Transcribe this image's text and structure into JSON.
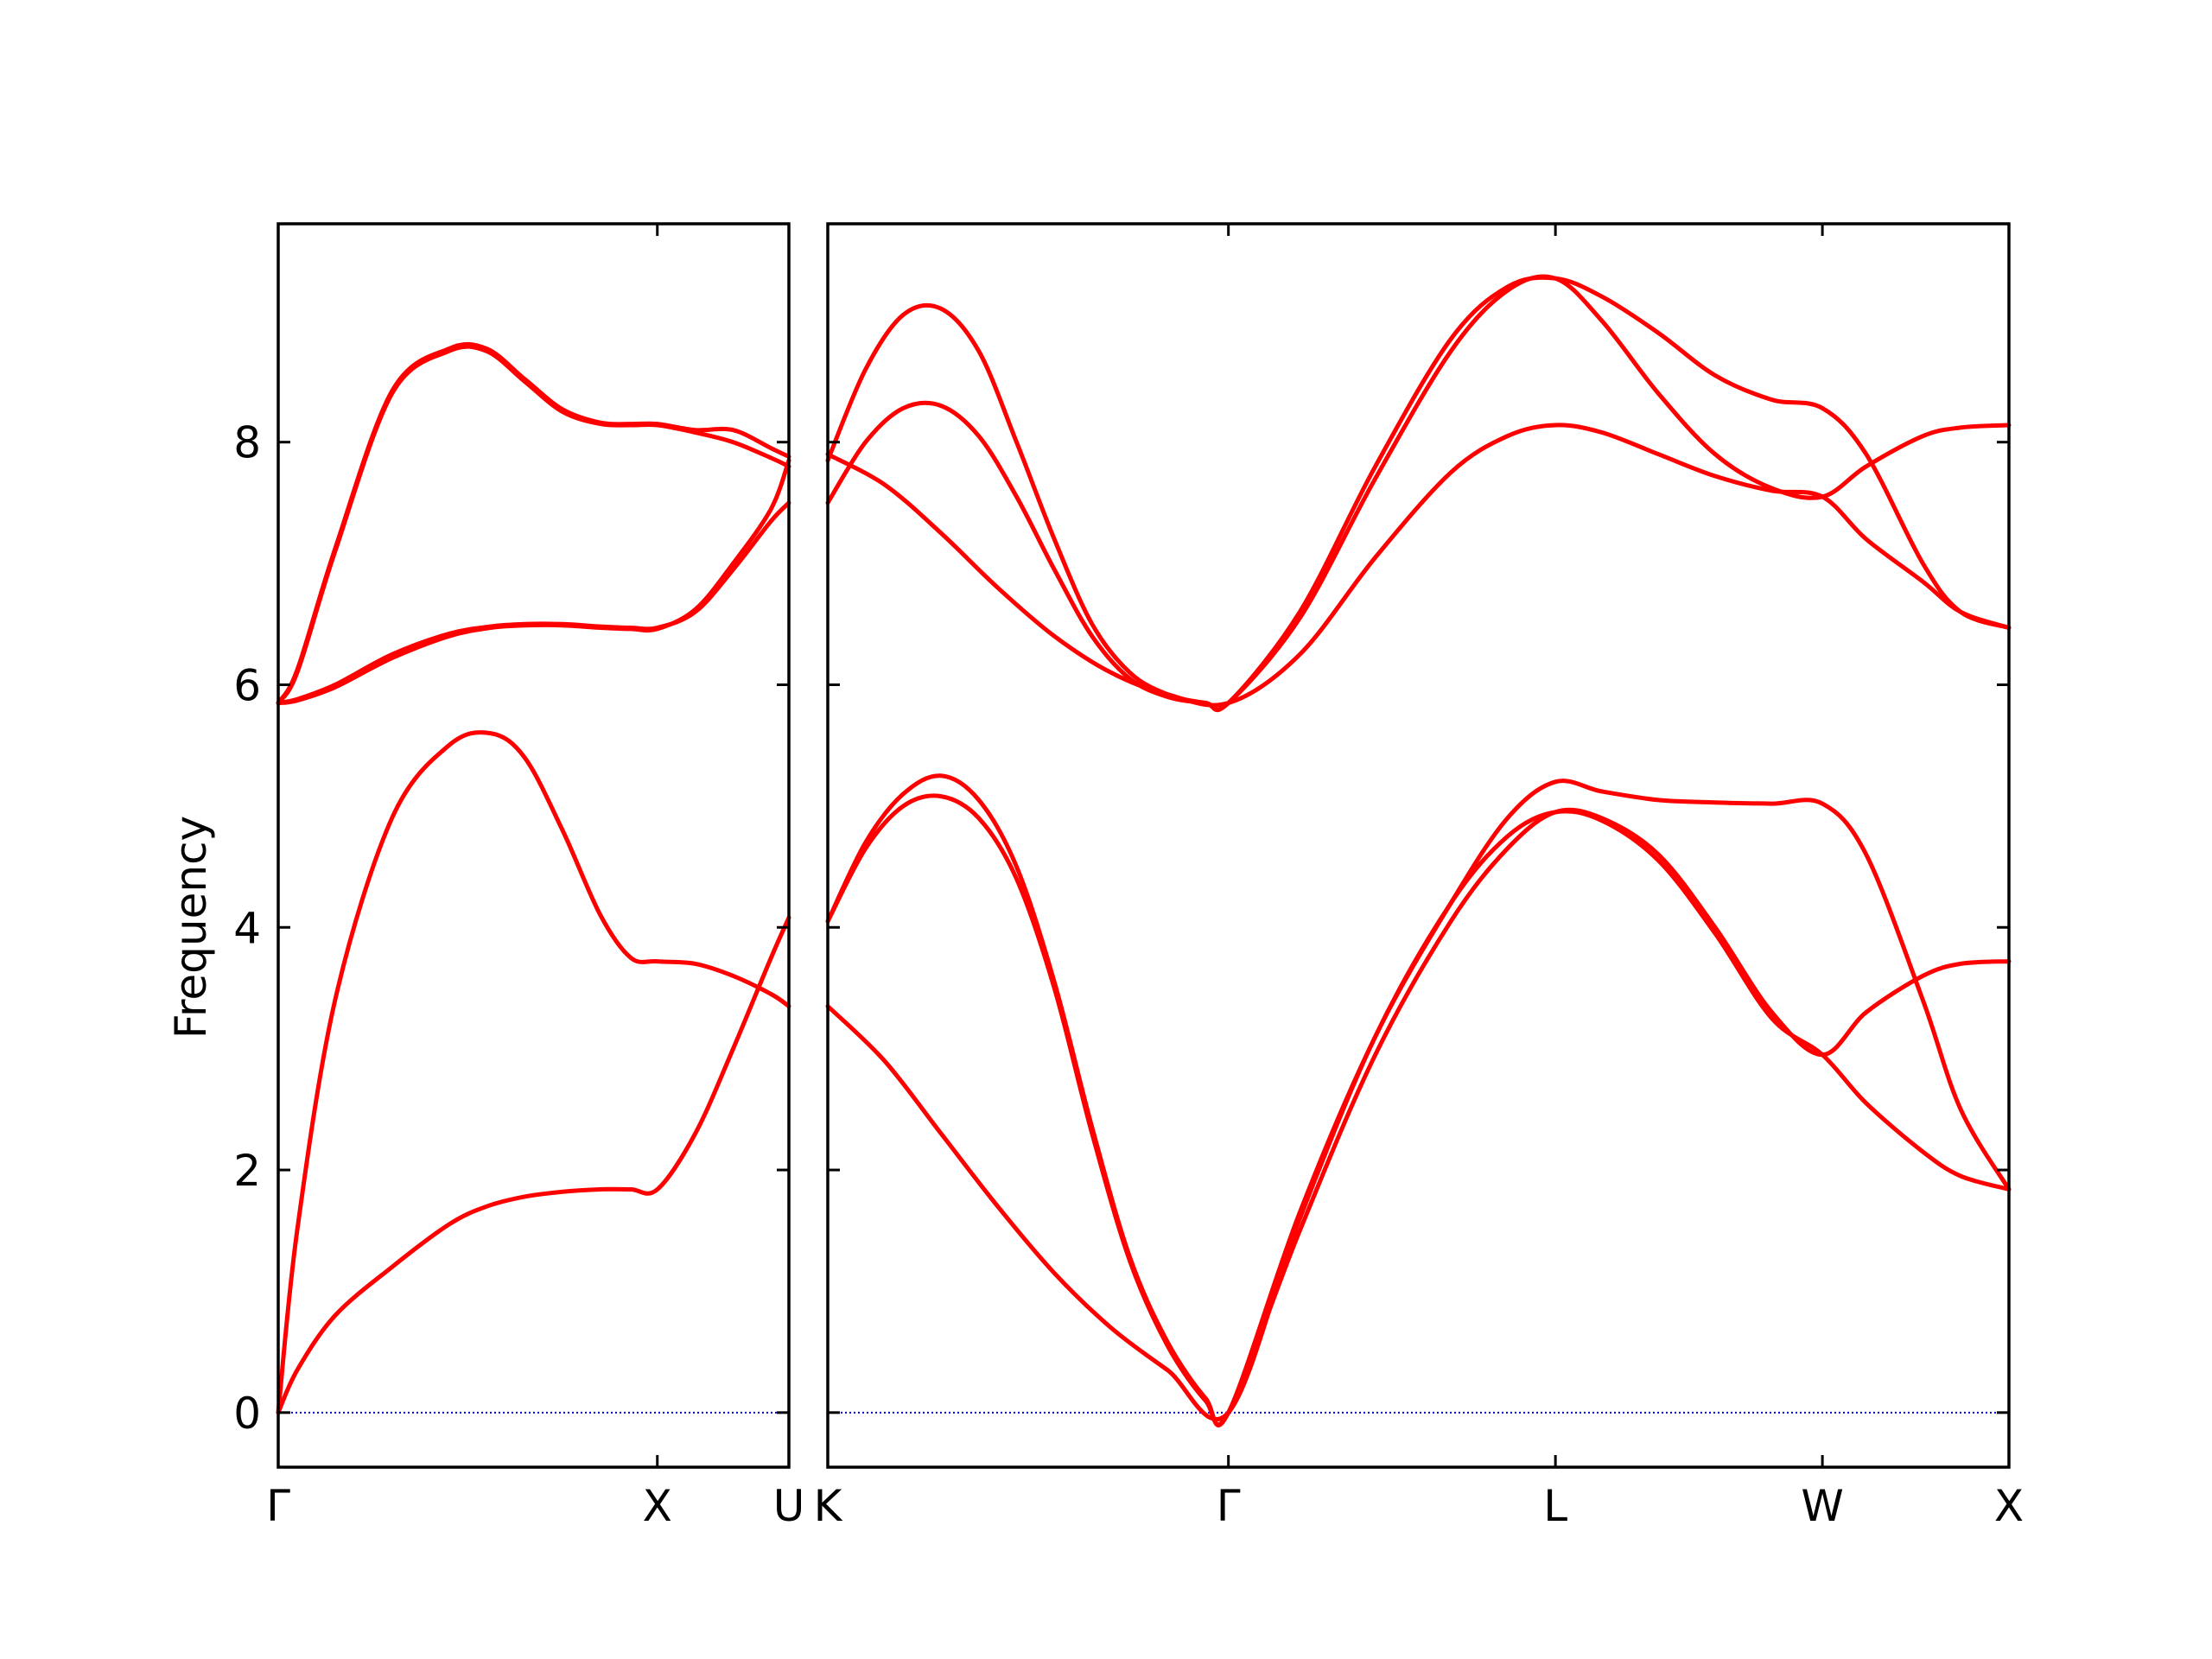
{
  "chart_data": {
    "type": "line",
    "title": "",
    "ylabel": "Frequency",
    "ylim": [
      -0.45,
      9.8
    ],
    "yticks": [
      "0",
      "2",
      "4",
      "6",
      "8"
    ],
    "grid": false,
    "legend": "none",
    "colors": {
      "band": "#ff0000",
      "zero_line": "#0000cc",
      "axes": "#000000"
    },
    "panels": [
      {
        "name": "Γ-X-U",
        "xlim": [
          0,
          1.347
        ],
        "ticks": [
          {
            "x": 0,
            "label": "Γ"
          },
          {
            "x": 1.0,
            "label": "X"
          },
          {
            "x": 1.347,
            "label": "U"
          }
        ],
        "bands": [
          {
            "x": [
              0,
              0.05,
              0.15,
              0.3,
              0.45,
              0.55,
              0.65,
              0.75,
              0.85,
              0.93,
              1.0,
              1.1,
              1.2,
              1.3,
              1.347
            ],
            "y": [
              0,
              0.35,
              0.8,
              1.2,
              1.55,
              1.7,
              1.78,
              1.82,
              1.84,
              1.84,
              1.84,
              2.3,
              3.0,
              3.75,
              4.08
            ]
          },
          {
            "x": [
              0,
              0.05,
              0.15,
              0.3,
              0.45,
              0.56,
              0.65,
              0.75,
              0.85,
              0.93,
              1.0,
              1.1,
              1.2,
              1.3,
              1.347
            ],
            "y": [
              0,
              1.5,
              3.4,
              4.9,
              5.5,
              5.6,
              5.4,
              4.8,
              4.1,
              3.75,
              3.72,
              3.7,
              3.6,
              3.45,
              3.35
            ]
          },
          {
            "x": [
              0,
              0.05,
              0.15,
              0.3,
              0.45,
              0.56,
              0.65,
              0.75,
              0.85,
              0.93,
              1.0,
              1.1,
              1.2,
              1.3,
              1.347
            ],
            "y": [
              5.85,
              5.88,
              6.0,
              6.25,
              6.42,
              6.48,
              6.5,
              6.5,
              6.48,
              6.47,
              6.47,
              6.6,
              6.95,
              7.35,
              7.5
            ]
          },
          {
            "x": [
              0,
              0.05,
              0.15,
              0.3,
              0.45,
              0.55,
              0.65,
              0.75,
              0.85,
              0.93,
              1.0,
              1.1,
              1.2,
              1.3,
              1.347
            ],
            "y": [
              5.85,
              6.1,
              7.1,
              8.4,
              8.75,
              8.75,
              8.5,
              8.25,
              8.15,
              8.14,
              8.14,
              8.08,
              8.0,
              7.87,
              7.8
            ]
          },
          {
            "x": [
              0,
              0.05,
              0.15,
              0.3,
              0.45,
              0.55,
              0.65,
              0.75,
              0.85,
              0.93,
              1.0,
              1.1,
              1.2,
              1.3,
              1.347
            ],
            "y": [
              5.85,
              6.12,
              7.12,
              8.42,
              8.77,
              8.77,
              8.52,
              8.27,
              8.16,
              8.15,
              8.15,
              8.1,
              8.1,
              7.95,
              7.88
            ]
          },
          {
            "x": [
              0,
              0.05,
              0.15,
              0.3,
              0.45,
              0.56,
              0.65,
              0.75,
              0.85,
              0.93,
              1.0,
              1.1,
              1.2,
              1.3,
              1.347
            ],
            "y": [
              5.85,
              5.87,
              5.98,
              6.22,
              6.4,
              6.47,
              6.49,
              6.49,
              6.47,
              6.46,
              6.46,
              6.62,
              7.0,
              7.45,
              7.85
            ]
          }
        ]
      },
      {
        "name": "K-Γ-L-W-X",
        "xlim": [
          0,
          3.128
        ],
        "ticks": [
          {
            "x": 0,
            "label": "K"
          },
          {
            "x": 1.061,
            "label": "Γ"
          },
          {
            "x": 1.927,
            "label": "L"
          },
          {
            "x": 2.634,
            "label": "W"
          },
          {
            "x": 3.128,
            "label": "X"
          }
        ],
        "bands": [
          {
            "x": [
              0,
              0.15,
              0.3,
              0.45,
              0.6,
              0.75,
              0.9,
              1.061,
              1.25,
              1.45,
              1.65,
              1.8,
              1.927,
              2.05,
              2.2,
              2.35,
              2.5,
              2.634,
              2.75,
              2.9,
              3.0,
              3.128
            ],
            "y": [
              3.35,
              2.9,
              2.3,
              1.7,
              1.15,
              0.7,
              0.35,
              0,
              1.6,
              3.1,
              4.2,
              4.75,
              4.95,
              4.88,
              4.55,
              3.95,
              3.25,
              2.95,
              2.55,
              2.15,
              1.95,
              1.84
            ]
          },
          {
            "x": [
              0,
              0.1,
              0.2,
              0.3,
              0.4,
              0.5,
              0.6,
              0.7,
              0.8,
              0.9,
              1.0,
              1.061,
              1.25,
              1.45,
              1.65,
              1.8,
              1.927,
              2.05,
              2.2,
              2.35,
              2.5,
              2.634,
              2.75,
              2.9,
              3.0,
              3.128
            ],
            "y": [
              4.05,
              4.65,
              5.0,
              5.08,
              4.9,
              4.4,
              3.5,
              2.3,
              1.25,
              0.55,
              0.1,
              0,
              1.5,
              2.95,
              4.05,
              4.65,
              4.95,
              4.9,
              4.6,
              4.0,
              3.3,
              2.95,
              3.3,
              3.6,
              3.7,
              3.72
            ]
          },
          {
            "x": [
              0,
              0.1,
              0.2,
              0.3,
              0.4,
              0.5,
              0.6,
              0.7,
              0.8,
              0.9,
              1.0,
              1.061,
              1.25,
              1.45,
              1.65,
              1.8,
              1.927,
              2.05,
              2.2,
              2.35,
              2.5,
              2.634,
              2.75,
              2.9,
              3.0,
              3.128
            ],
            "y": [
              4.05,
              4.7,
              5.1,
              5.25,
              5.05,
              4.5,
              3.55,
              2.35,
              1.28,
              0.58,
              0.12,
              0,
              1.65,
              3.1,
              4.2,
              4.9,
              5.2,
              5.12,
              5.05,
              5.03,
              5.02,
              5.02,
              4.6,
              3.4,
              2.5,
              1.84
            ]
          },
          {
            "x": [
              0,
              0.15,
              0.3,
              0.45,
              0.6,
              0.75,
              0.9,
              1.061,
              1.25,
              1.45,
              1.65,
              1.8,
              1.927,
              2.05,
              2.2,
              2.35,
              2.5,
              2.634,
              2.75,
              2.9,
              3.0,
              3.128
            ],
            "y": [
              7.9,
              7.65,
              7.25,
              6.8,
              6.4,
              6.1,
              5.92,
              5.85,
              6.25,
              7.05,
              7.75,
              8.05,
              8.14,
              8.08,
              7.9,
              7.72,
              7.6,
              7.55,
              7.2,
              6.85,
              6.6,
              6.47
            ]
          },
          {
            "x": [
              0,
              0.1,
              0.2,
              0.3,
              0.4,
              0.5,
              0.6,
              0.7,
              0.8,
              0.9,
              1.0,
              1.061,
              1.25,
              1.45,
              1.65,
              1.8,
              1.927,
              2.05,
              2.2,
              2.35,
              2.5,
              2.634,
              2.75,
              2.9,
              3.0,
              3.128
            ],
            "y": [
              7.5,
              8.0,
              8.28,
              8.3,
              8.05,
              7.55,
              6.95,
              6.4,
              6.05,
              5.9,
              5.85,
              5.85,
              6.55,
              7.7,
              8.75,
              9.25,
              9.35,
              9.0,
              8.4,
              7.9,
              7.62,
              7.55,
              7.8,
              8.05,
              8.12,
              8.14
            ]
          },
          {
            "x": [
              0,
              0.1,
              0.2,
              0.3,
              0.4,
              0.5,
              0.6,
              0.7,
              0.8,
              0.9,
              1.0,
              1.061,
              1.25,
              1.45,
              1.65,
              1.8,
              1.927,
              2.05,
              2.2,
              2.35,
              2.5,
              2.634,
              2.75,
              2.9,
              3.0,
              3.128
            ],
            "y": [
              7.85,
              8.6,
              9.05,
              9.1,
              8.75,
              8.0,
              7.2,
              6.5,
              6.1,
              5.92,
              5.85,
              5.85,
              6.6,
              7.8,
              8.85,
              9.28,
              9.35,
              9.2,
              8.9,
              8.55,
              8.35,
              8.28,
              7.9,
              7.0,
              6.6,
              6.47
            ]
          }
        ]
      }
    ]
  }
}
